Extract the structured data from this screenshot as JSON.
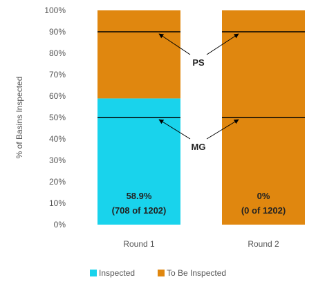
{
  "chart_data": {
    "type": "bar",
    "stacked": true,
    "categories": [
      "Round 1",
      "Round 2"
    ],
    "series": [
      {
        "name": "Inspected",
        "values": [
          58.9,
          0
        ],
        "color": "#19d3ec"
      },
      {
        "name": "To Be Inspected",
        "values": [
          41.1,
          100
        ],
        "color": "#e0870f"
      }
    ],
    "ylabel": "% of Basins Inspected",
    "ylim": [
      0,
      100
    ],
    "yticks": [
      "0%",
      "10%",
      "20%",
      "30%",
      "40%",
      "50%",
      "60%",
      "70%",
      "80%",
      "90%",
      "100%"
    ],
    "data_labels": [
      {
        "line1": "58.9%",
        "line2": "(708 of 1202)"
      },
      {
        "line1": "0%",
        "line2": "(0 of 1202)"
      }
    ],
    "reference_lines": [
      {
        "label": "PS",
        "value": 90
      },
      {
        "label": "MG",
        "value": 50
      }
    ],
    "legend": {
      "position": "bottom",
      "entries": [
        "Inspected",
        "To Be Inspected"
      ]
    },
    "grid": false
  }
}
